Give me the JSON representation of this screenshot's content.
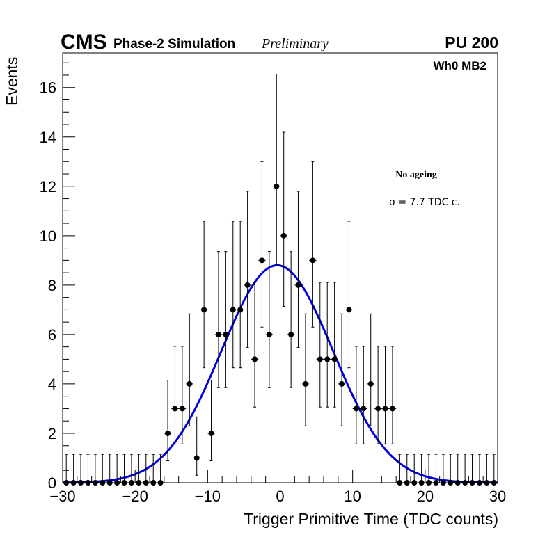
{
  "chart_data": {
    "type": "scatter",
    "experiment": "CMS",
    "subtitle": "Phase-2 Simulation",
    "status": "Preliminary",
    "pileup": "PU 200",
    "region": "Wh0 MB2",
    "annotation_title": "No ageing",
    "annotation_sigma": "σ = 7.7 TDC c.",
    "xlabel": "Trigger Primitive Time (TDC counts)",
    "ylabel": "Events",
    "xlim": [
      -30,
      30
    ],
    "ylim": [
      0,
      17.4
    ],
    "x_ticks": [
      -30,
      -20,
      -10,
      0,
      10,
      20,
      30
    ],
    "x_tick_labels": [
      "−30",
      "−20",
      "−10",
      "0",
      "10",
      "20",
      "30"
    ],
    "y_ticks": [
      0,
      2,
      4,
      6,
      8,
      10,
      12,
      14,
      16
    ],
    "y_tick_labels": [
      "0",
      "2",
      "4",
      "6",
      "8",
      "10",
      "12",
      "14",
      "16"
    ],
    "series": [
      {
        "name": "Trigger primitives",
        "style": "markers-with-errors",
        "color": "#000000",
        "bin_width": 1,
        "x": [
          -30,
          -29,
          -28,
          -27,
          -26,
          -25,
          -24,
          -23,
          -22,
          -21,
          -20,
          -19,
          -18,
          -17,
          -16,
          -15,
          -14,
          -13,
          -12,
          -11,
          -10,
          -9,
          -8,
          -7,
          -6,
          -5,
          -4,
          -3,
          -2,
          -1,
          0,
          1,
          2,
          3,
          4,
          5,
          6,
          7,
          8,
          9,
          10,
          11,
          12,
          13,
          14,
          15,
          16,
          17,
          18,
          19,
          20,
          21,
          22,
          23,
          24,
          25,
          26,
          27,
          28,
          29
        ],
        "y": [
          0,
          0,
          0,
          0,
          0,
          0,
          0,
          0,
          0,
          0,
          0,
          0,
          0,
          0,
          2,
          3,
          3,
          4,
          1,
          7,
          2,
          6,
          6,
          7,
          7,
          8,
          5,
          9,
          6,
          12,
          10,
          6,
          8,
          4,
          9,
          5,
          5,
          5,
          4,
          7,
          3,
          3,
          4,
          3,
          3,
          3,
          0,
          0,
          0,
          0,
          0,
          0,
          0,
          0,
          0,
          0,
          0,
          0,
          0,
          0
        ]
      },
      {
        "name": "Gaussian fit",
        "style": "line",
        "color": "#0000dd",
        "fit": "gaussian",
        "constant": 8.8,
        "mean": -0.4,
        "sigma": 7.7
      }
    ]
  }
}
